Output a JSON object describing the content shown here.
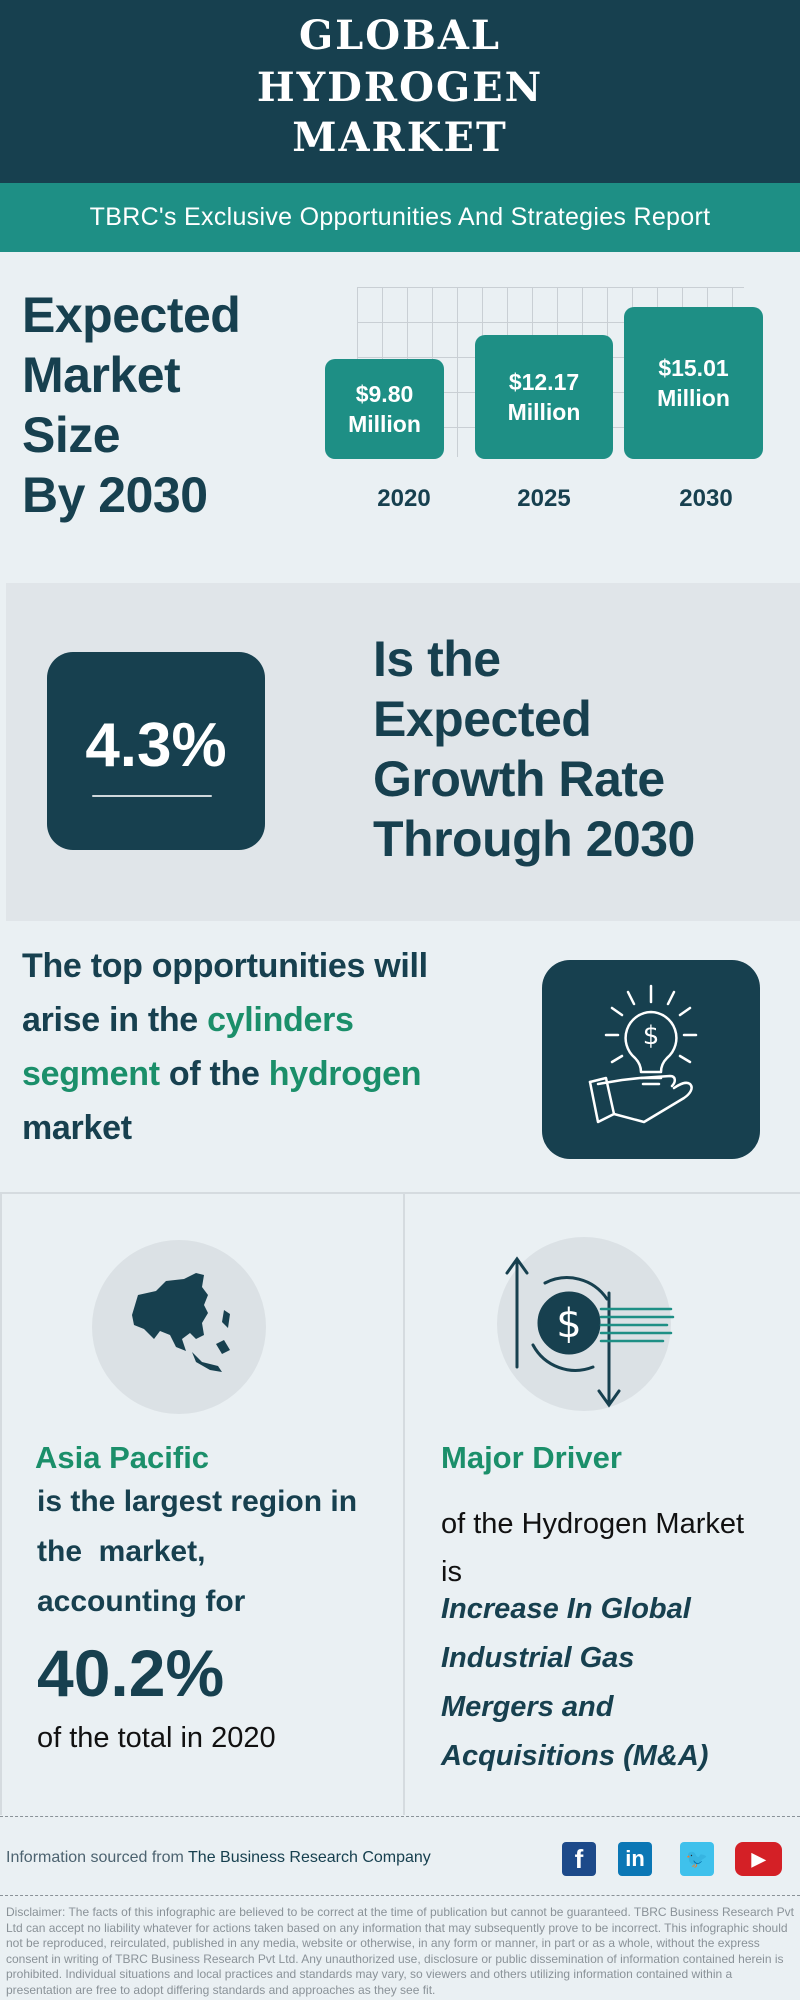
{
  "header": {
    "title_lines": [
      "GLOBAL",
      "HYDROGEN",
      "MARKET"
    ],
    "subtitle": "TBRC's Exclusive Opportunities And Strategies Report"
  },
  "market_size": {
    "heading_lines": [
      "Expected",
      "Market",
      "Size",
      "By 2030"
    ]
  },
  "chart_data": {
    "type": "bar",
    "categories": [
      "2020",
      "2025",
      "2030"
    ],
    "values": [
      9.8,
      12.17,
      15.01
    ],
    "value_labels": [
      "$9.80",
      "$12.17",
      "$15.01"
    ],
    "unit_label": "Million",
    "grid": true
  },
  "growth": {
    "rate": "4.3%",
    "text_lines": [
      "Is the",
      "Expected",
      "Growth Rate",
      "Through 2030"
    ]
  },
  "opportunity": {
    "l1": "The top opportunities will",
    "l2a": "arise in the ",
    "l2b": "cylinders",
    "l3a": "segment",
    "l3b": " of the ",
    "l3c": "hydrogen",
    "l4": "market",
    "icon": "lightbulb-dollar-hand-icon"
  },
  "region": {
    "title": "Asia Pacific",
    "lines": [
      "is the largest region in",
      "the  market,",
      "accounting for"
    ],
    "share": "40.2%",
    "tail": "of the total in 2020",
    "icon": "asia-map-icon"
  },
  "driver": {
    "title": "Major Driver",
    "l1": "of the Hydrogen Market",
    "l2": "is",
    "driver_lines": [
      "Increase In Global",
      "Industrial Gas",
      "Mergers and",
      "Acquisitions (M&A)"
    ],
    "icon": "dollar-exchange-icon"
  },
  "footer": {
    "source_prefix": "Information sourced from ",
    "source_name": "The Business Research Company",
    "social": [
      {
        "name": "facebook",
        "glyph": "f",
        "color": "#1d4a8a"
      },
      {
        "name": "linkedin",
        "glyph": "in",
        "color": "#0b77b5"
      },
      {
        "name": "twitter",
        "glyph": "🐦",
        "color": "#3fc1ec"
      },
      {
        "name": "youtube",
        "glyph": "▶",
        "color": "#d42026"
      }
    ],
    "disclaimer": "Disclaimer: The facts of this infographic are believed to be correct at the time of publication but cannot be guaranteed. TBRC Business Research Pvt Ltd can accept no liability whatever for actions taken based on any information that may subsequently prove to be incorrect. This infographic should not be reproduced, reirculated, published in any media, website or otherwise, in any form or manner, in part or as a whole, without the express consent in writing of TBRC Business Research Pvt Ltd. Any unauthorized use, disclosure or public dissemination of information contained herein is prohibited. Individual situations and local practices and standards may vary, so viewers and others utilizing information contained within a presentation are free to adopt differing standards and approaches as they see fit."
  },
  "colors": {
    "dark": "#17404f",
    "teal": "#1e8f85",
    "green": "#1b8f6a",
    "background": "#eaf0f3"
  }
}
